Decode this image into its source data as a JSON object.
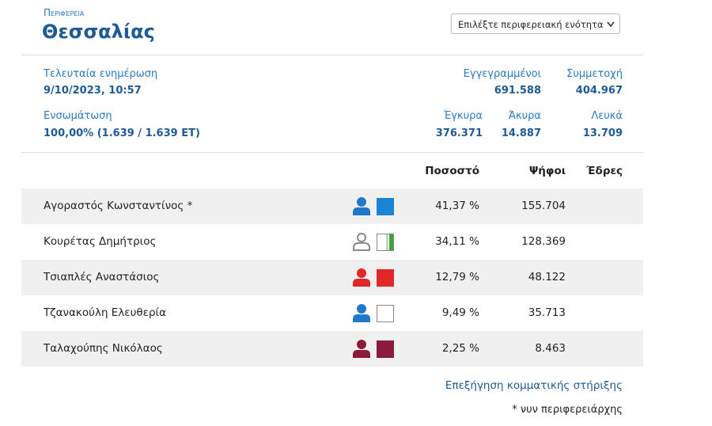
{
  "header": {
    "kicker": "Περιφέρεια",
    "title": "Θεσσαλίας",
    "select": "Επιλέξτε περιφερειακή ενότητα"
  },
  "stats": {
    "updated": {
      "label": "Τελευταία ενημέρωση",
      "value": "9/10/2023, 10:57"
    },
    "registered": {
      "label": "Εγγεγραμμένοι",
      "value": "691.588"
    },
    "turnout": {
      "label": "Συμμετοχή",
      "value": "404.967"
    },
    "counted": {
      "label": "Ενσωμάτωση",
      "value": "100,00% (1.639 / 1.639 ΕΤ)"
    },
    "valid": {
      "label": "Έγκυρα",
      "value": "376.371"
    },
    "invalid": {
      "label": "Άκυρα",
      "value": "14.887"
    },
    "blank": {
      "label": "Λευκά",
      "value": "13.709"
    }
  },
  "table": {
    "columns": [
      "Ποσοστό",
      "Ψήφοι",
      "Έδρες"
    ],
    "rows": [
      {
        "name": "Αγοραστός Κωνσταντίνος *",
        "percent": "41,37 %",
        "votes": "155.704",
        "person_color": "#1f78c8",
        "box_color": "#1a84d6"
      },
      {
        "name": "Κουρέτας Δημήτριος",
        "percent": "34,11 %",
        "votes": "128.369",
        "person_color": "#8a8a8a",
        "person_outline": true,
        "box_color": "#ffffff",
        "stripe_color": "#3aa635"
      },
      {
        "name": "Τσιαπλές Αναστάσιος",
        "percent": "12,79 %",
        "votes": "48.122",
        "person_color": "#e02828",
        "box_color": "#e02828"
      },
      {
        "name": "Τζανακούλη Ελευθερία",
        "percent": "9,49 %",
        "votes": "35.713",
        "person_color": "#1f78c8",
        "box_color": "#ffffff"
      },
      {
        "name": "Ταλαχούπης Νικόλαος",
        "percent": "2,25 %",
        "votes": "8.463",
        "person_color": "#8b1a3c",
        "box_color": "#8b1a3c"
      }
    ]
  },
  "footer": {
    "link": "Επεξήγηση κομματικής στήριξης",
    "note": "* νυν περιφερειάρχης"
  }
}
